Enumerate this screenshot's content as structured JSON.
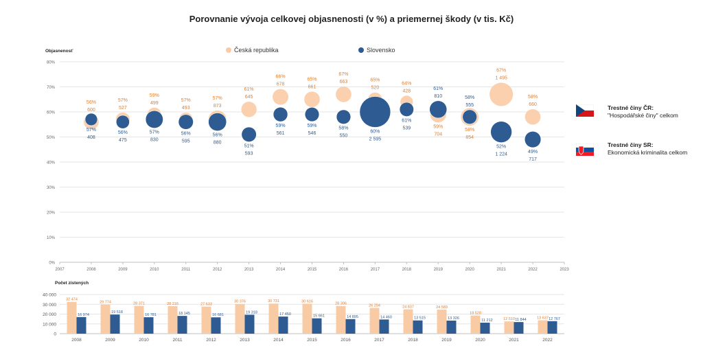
{
  "title": "Porovnanie vývoja celkovej objasnenosti (v %) a priemernej škody (v tis. Kč)",
  "colors": {
    "cr": "#F9CBA5",
    "sk": "#2E5B91",
    "cr_text": "#E07E2E",
    "sk_text": "#2E5B91"
  },
  "side_legend": {
    "cr_title": "Trestné činy ČR:",
    "cr_sub": "\"Hospodářské činy\" celkom",
    "sk_title": "Trestné činy SR:",
    "sk_sub": "Ekonomická kriminalita celkom"
  },
  "chart_data": [
    {
      "type": "bubble",
      "ylabel": "Objasnenosť",
      "xlim": [
        2007,
        2023
      ],
      "ylim": [
        0,
        80
      ],
      "yticks": [
        "0%",
        "10%",
        "20%",
        "30%",
        "40%",
        "50%",
        "60%",
        "70%",
        "80%"
      ],
      "xticks": [
        "2007",
        "2008",
        "2009",
        "2010",
        "2011",
        "2012",
        "2013",
        "2014",
        "2015",
        "2016",
        "2017",
        "2018",
        "2019",
        "2020",
        "2021",
        "2022",
        "2023"
      ],
      "legend": [
        "Česká republika",
        "Slovensko"
      ],
      "legend_position": "top",
      "series": [
        {
          "name": "Česká republika",
          "x": [
            2008,
            2009,
            2010,
            2011,
            2012,
            2013,
            2014,
            2015,
            2016,
            2017,
            2018,
            2019,
            2020,
            2021,
            2022
          ],
          "clearance": [
            56,
            57,
            59,
            57,
            57,
            61,
            66,
            65,
            67,
            65,
            64,
            59,
            58,
            67,
            58
          ],
          "clearance_labels": [
            "56%",
            "57%",
            "59%",
            "57%",
            "57%",
            "61%",
            "66%",
            "65%",
            "67%",
            "65%",
            "64%",
            "59%",
            "58%",
            "67%",
            "58%"
          ],
          "damage": [
            600,
            527,
            499,
            493,
            873,
            645,
            678,
            661,
            663,
            520,
            428,
            704,
            854,
            1495,
            660
          ],
          "damage_labels": [
            "600",
            "527",
            "499",
            "493",
            "873",
            "645",
            "678",
            "661",
            "663",
            "520",
            "428",
            "704",
            "854",
            "1 495",
            "660"
          ]
        },
        {
          "name": "Slovensko",
          "x": [
            2008,
            2009,
            2010,
            2011,
            2012,
            2013,
            2014,
            2015,
            2016,
            2017,
            2018,
            2019,
            2020,
            2021,
            2022
          ],
          "clearance": [
            57,
            56,
            57,
            56,
            56,
            51,
            59,
            59,
            58,
            60,
            61,
            61,
            58,
            52,
            49
          ],
          "clearance_labels": [
            "57%",
            "56%",
            "57%",
            "56%",
            "56%",
            "51%",
            "59%",
            "59%",
            "58%",
            "60%",
            "61%",
            "61%",
            "58%",
            "52%",
            "49%"
          ],
          "damage": [
            408,
            475,
            830,
            595,
            880,
            593,
            561,
            546,
            550,
            2595,
            539,
            810,
            555,
            1224,
            717
          ],
          "damage_labels": [
            "408",
            "475",
            "830",
            "595",
            "880",
            "593",
            "561",
            "546",
            "550",
            "2 595",
            "539",
            "810",
            "555",
            "1 224",
            "717"
          ]
        }
      ]
    },
    {
      "type": "bar",
      "ylabel": "Počet zistených",
      "ylim": [
        0,
        40000
      ],
      "yticks": [
        "0",
        "10 000",
        "20 000",
        "30 000",
        "40 000"
      ],
      "categories": [
        "2008",
        "2009",
        "2010",
        "2011",
        "2012",
        "2013",
        "2014",
        "2015",
        "2016",
        "2017",
        "2018",
        "2019",
        "2020",
        "2021",
        "2022"
      ],
      "series": [
        {
          "name": "Česká republika",
          "values": [
            32474,
            29774,
            28371,
            28216,
            27633,
            30376,
            30731,
            30616,
            28306,
            26294,
            24837,
            24589,
            18528,
            12510,
            13637
          ],
          "labels": [
            "32 474",
            "29 774",
            "28 371",
            "28 216",
            "27 633",
            "30 376",
            "30 731",
            "30 616",
            "28 306",
            "26 294",
            "24 837",
            "24 589",
            "18 528",
            "12 510",
            "13 637"
          ]
        },
        {
          "name": "Slovensko",
          "values": [
            16974,
            19518,
            16781,
            18145,
            16681,
            19318,
            17450,
            15661,
            14895,
            14460,
            13515,
            13326,
            11212,
            11844,
            12767
          ],
          "labels": [
            "16 974",
            "19 518",
            "16 781",
            "18 145",
            "16 681",
            "19 318",
            "17 450",
            "15 661",
            "14 895",
            "14 460",
            "13 515",
            "13 326",
            "11 212",
            "11 844",
            "12 767"
          ]
        }
      ]
    }
  ]
}
